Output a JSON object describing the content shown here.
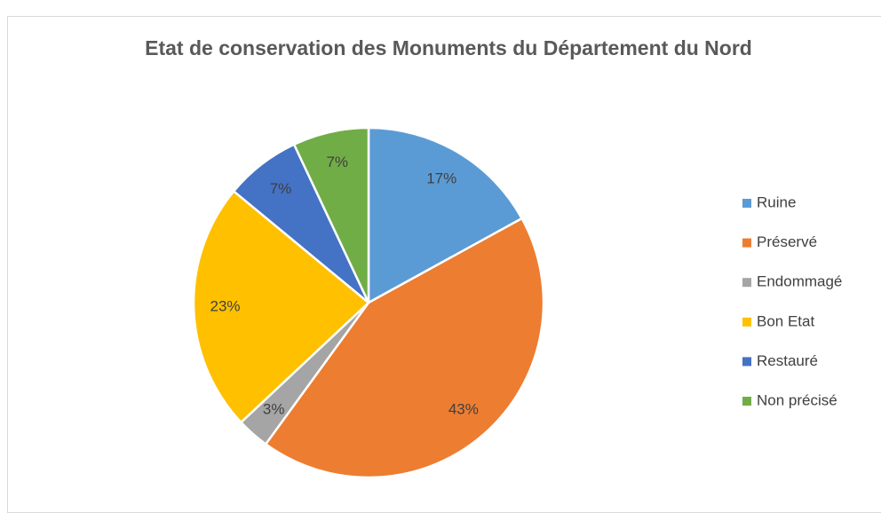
{
  "chart_data": {
    "type": "pie",
    "title": "Etat de conservation des Monuments du Département du Nord",
    "categories": [
      "Ruine",
      "Préservé",
      "Endommagé",
      "Bon Etat",
      "Restauré",
      "Non précisé"
    ],
    "values": [
      17,
      43,
      3,
      23,
      7,
      7
    ],
    "value_labels": [
      "17%",
      "43%",
      "3%",
      "23%",
      "7%",
      "7%"
    ],
    "colors": [
      "#5b9bd5",
      "#ed7d31",
      "#a5a5a5",
      "#ffc000",
      "#4472c4",
      "#70ad47"
    ],
    "legend": "right"
  }
}
